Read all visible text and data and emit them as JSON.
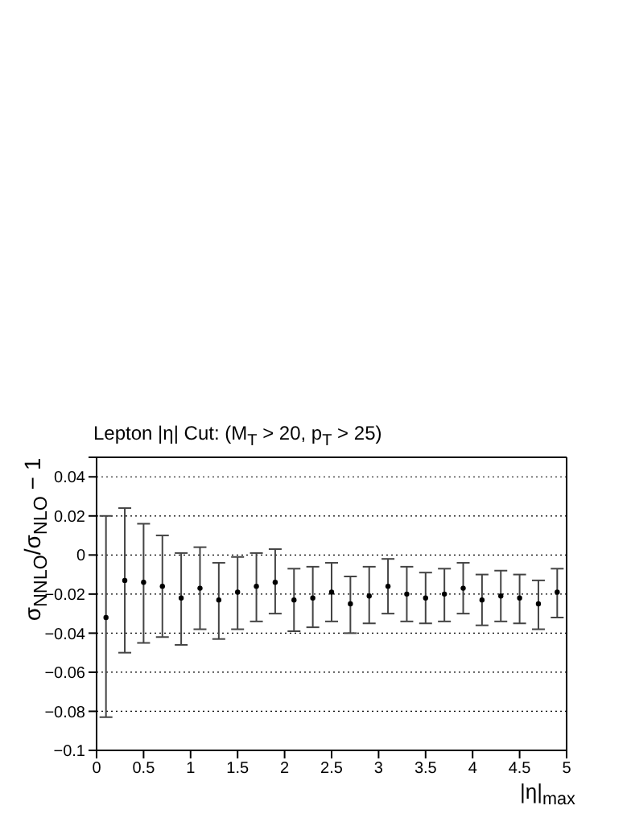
{
  "chart_data": {
    "type": "scatter",
    "title": "Lepton |η| Cut: (M$_{T}$ > 20, p$_{T}$ > 25)",
    "xlabel": "|η|$_{max}$",
    "ylabel": "σ$_{NNLO}$/σ$_{NLO}$ − 1",
    "x": [
      0.1,
      0.3,
      0.5,
      0.7,
      0.9,
      1.1,
      1.3,
      1.5,
      1.7,
      1.9,
      2.1,
      2.3,
      2.5,
      2.7,
      2.9,
      3.1,
      3.3,
      3.5,
      3.7,
      3.9,
      4.1,
      4.3,
      4.5,
      4.7,
      4.9
    ],
    "series": [
      {
        "color": "#000000",
        "values": [
          -0.032,
          -0.013,
          -0.014,
          -0.016,
          -0.022,
          -0.017,
          -0.023,
          -0.019,
          -0.016,
          -0.014,
          -0.023,
          -0.022,
          -0.019,
          -0.025,
          -0.021,
          -0.016,
          -0.02,
          -0.022,
          -0.02,
          -0.017,
          -0.023,
          -0.021,
          -0.022,
          -0.025,
          -0.019
        ],
        "errors": [
          [
            -0.083,
            0.02
          ],
          [
            -0.05,
            0.024
          ],
          [
            -0.045,
            0.016
          ],
          [
            -0.042,
            0.01
          ],
          [
            -0.046,
            0.001
          ],
          [
            -0.038,
            0.004
          ],
          [
            -0.043,
            -0.004
          ],
          [
            -0.038,
            -0.001
          ],
          [
            -0.034,
            0.001
          ],
          [
            -0.03,
            0.003
          ],
          [
            -0.039,
            -0.007
          ],
          [
            -0.037,
            -0.006
          ],
          [
            -0.034,
            -0.004
          ],
          [
            -0.04,
            -0.011
          ],
          [
            -0.035,
            -0.006
          ],
          [
            -0.03,
            -0.002
          ],
          [
            -0.034,
            -0.006
          ],
          [
            -0.035,
            -0.009
          ],
          [
            -0.034,
            -0.007
          ],
          [
            -0.03,
            -0.004
          ],
          [
            -0.036,
            -0.01
          ],
          [
            -0.034,
            -0.008
          ],
          [
            -0.035,
            -0.01
          ],
          [
            -0.038,
            -0.013
          ],
          [
            -0.032,
            -0.007
          ]
        ]
      }
    ],
    "xlim": [
      0,
      5
    ],
    "xticks": [
      0,
      0.5,
      1,
      1.5,
      2,
      2.5,
      3,
      3.5,
      4,
      4.5,
      5
    ],
    "ylim": [
      -0.1,
      0.05
    ],
    "yticks": [
      {
        "value": -0.1,
        "label": "−0.1"
      },
      {
        "value": -0.08,
        "label": "−0.08"
      },
      {
        "value": -0.06,
        "label": "−0.06"
      },
      {
        "value": -0.04,
        "label": "−0.04"
      },
      {
        "value": -0.02,
        "label": "−0.02"
      },
      0,
      0.02,
      0.04,
      {
        "value": 0.05,
        "label": null
      }
    ],
    "grid": "y",
    "marker": "circle"
  }
}
